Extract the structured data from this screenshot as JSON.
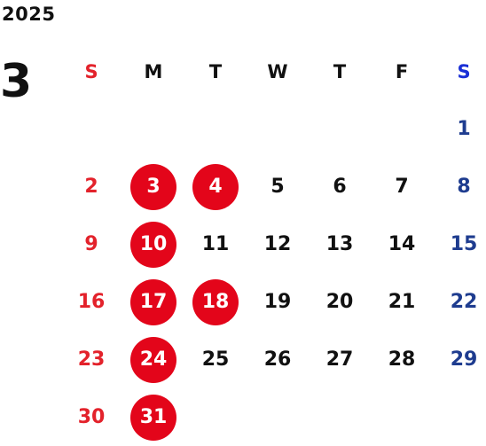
{
  "year": "2025",
  "month": "3",
  "weekdays": [
    "S",
    "M",
    "T",
    "W",
    "T",
    "F",
    "S"
  ],
  "first_weekday": 6,
  "days_in_month": 31,
  "highlighted_days": [
    3,
    4,
    10,
    17,
    18,
    24,
    31
  ],
  "colors": {
    "sunday": "#e3222b",
    "saturday": "#1e3c8f",
    "saturday_header": "#1a2fd6",
    "highlight": "#e3051a"
  }
}
